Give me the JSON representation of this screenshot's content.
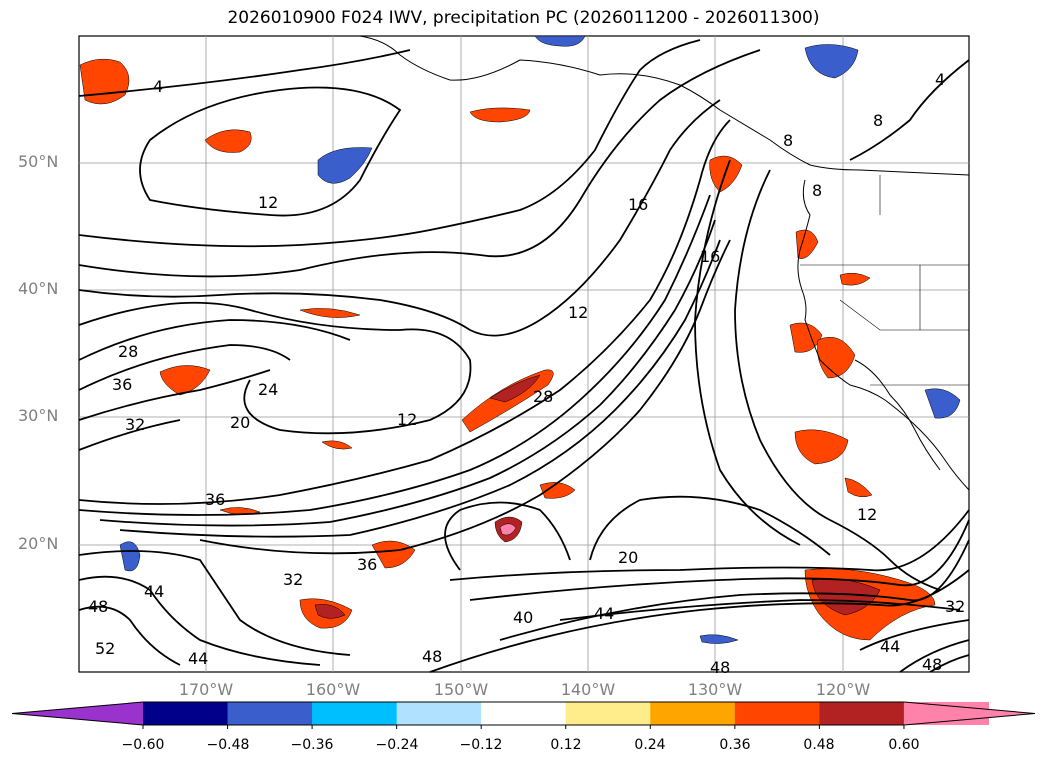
{
  "title": "2026010900 F024 IWV, precipitation PC (2026011200 - 2026011300)",
  "latitude_labels": [
    "50°N",
    "40°N",
    "30°N",
    "20°N"
  ],
  "longitude_labels": [
    "170°W",
    "160°W",
    "150°W",
    "140°W",
    "130°W",
    "120°W"
  ],
  "contour_labels": [
    "4",
    "4",
    "8",
    "8",
    "8",
    "12",
    "12",
    "12",
    "12",
    "16",
    "16",
    "20",
    "20",
    "24",
    "28",
    "28",
    "32",
    "32",
    "32",
    "36",
    "36",
    "36",
    "40",
    "44",
    "44",
    "44",
    "44",
    "48",
    "48",
    "48",
    "48",
    "52"
  ],
  "colorbar": {
    "ticks": [
      "−0.60",
      "−0.48",
      "−0.36",
      "−0.24",
      "−0.12",
      "0.12",
      "0.24",
      "0.36",
      "0.48",
      "0.60"
    ],
    "colors": [
      "#9a32cd",
      "#00008b",
      "#3a5fcd",
      "#00bfff",
      "#b0e2ff",
      "#ffffff",
      "#ffec8b",
      "#ffa500",
      "#ff4500",
      "#b22222",
      "#ff82ab",
      "#ff82ab"
    ]
  }
}
